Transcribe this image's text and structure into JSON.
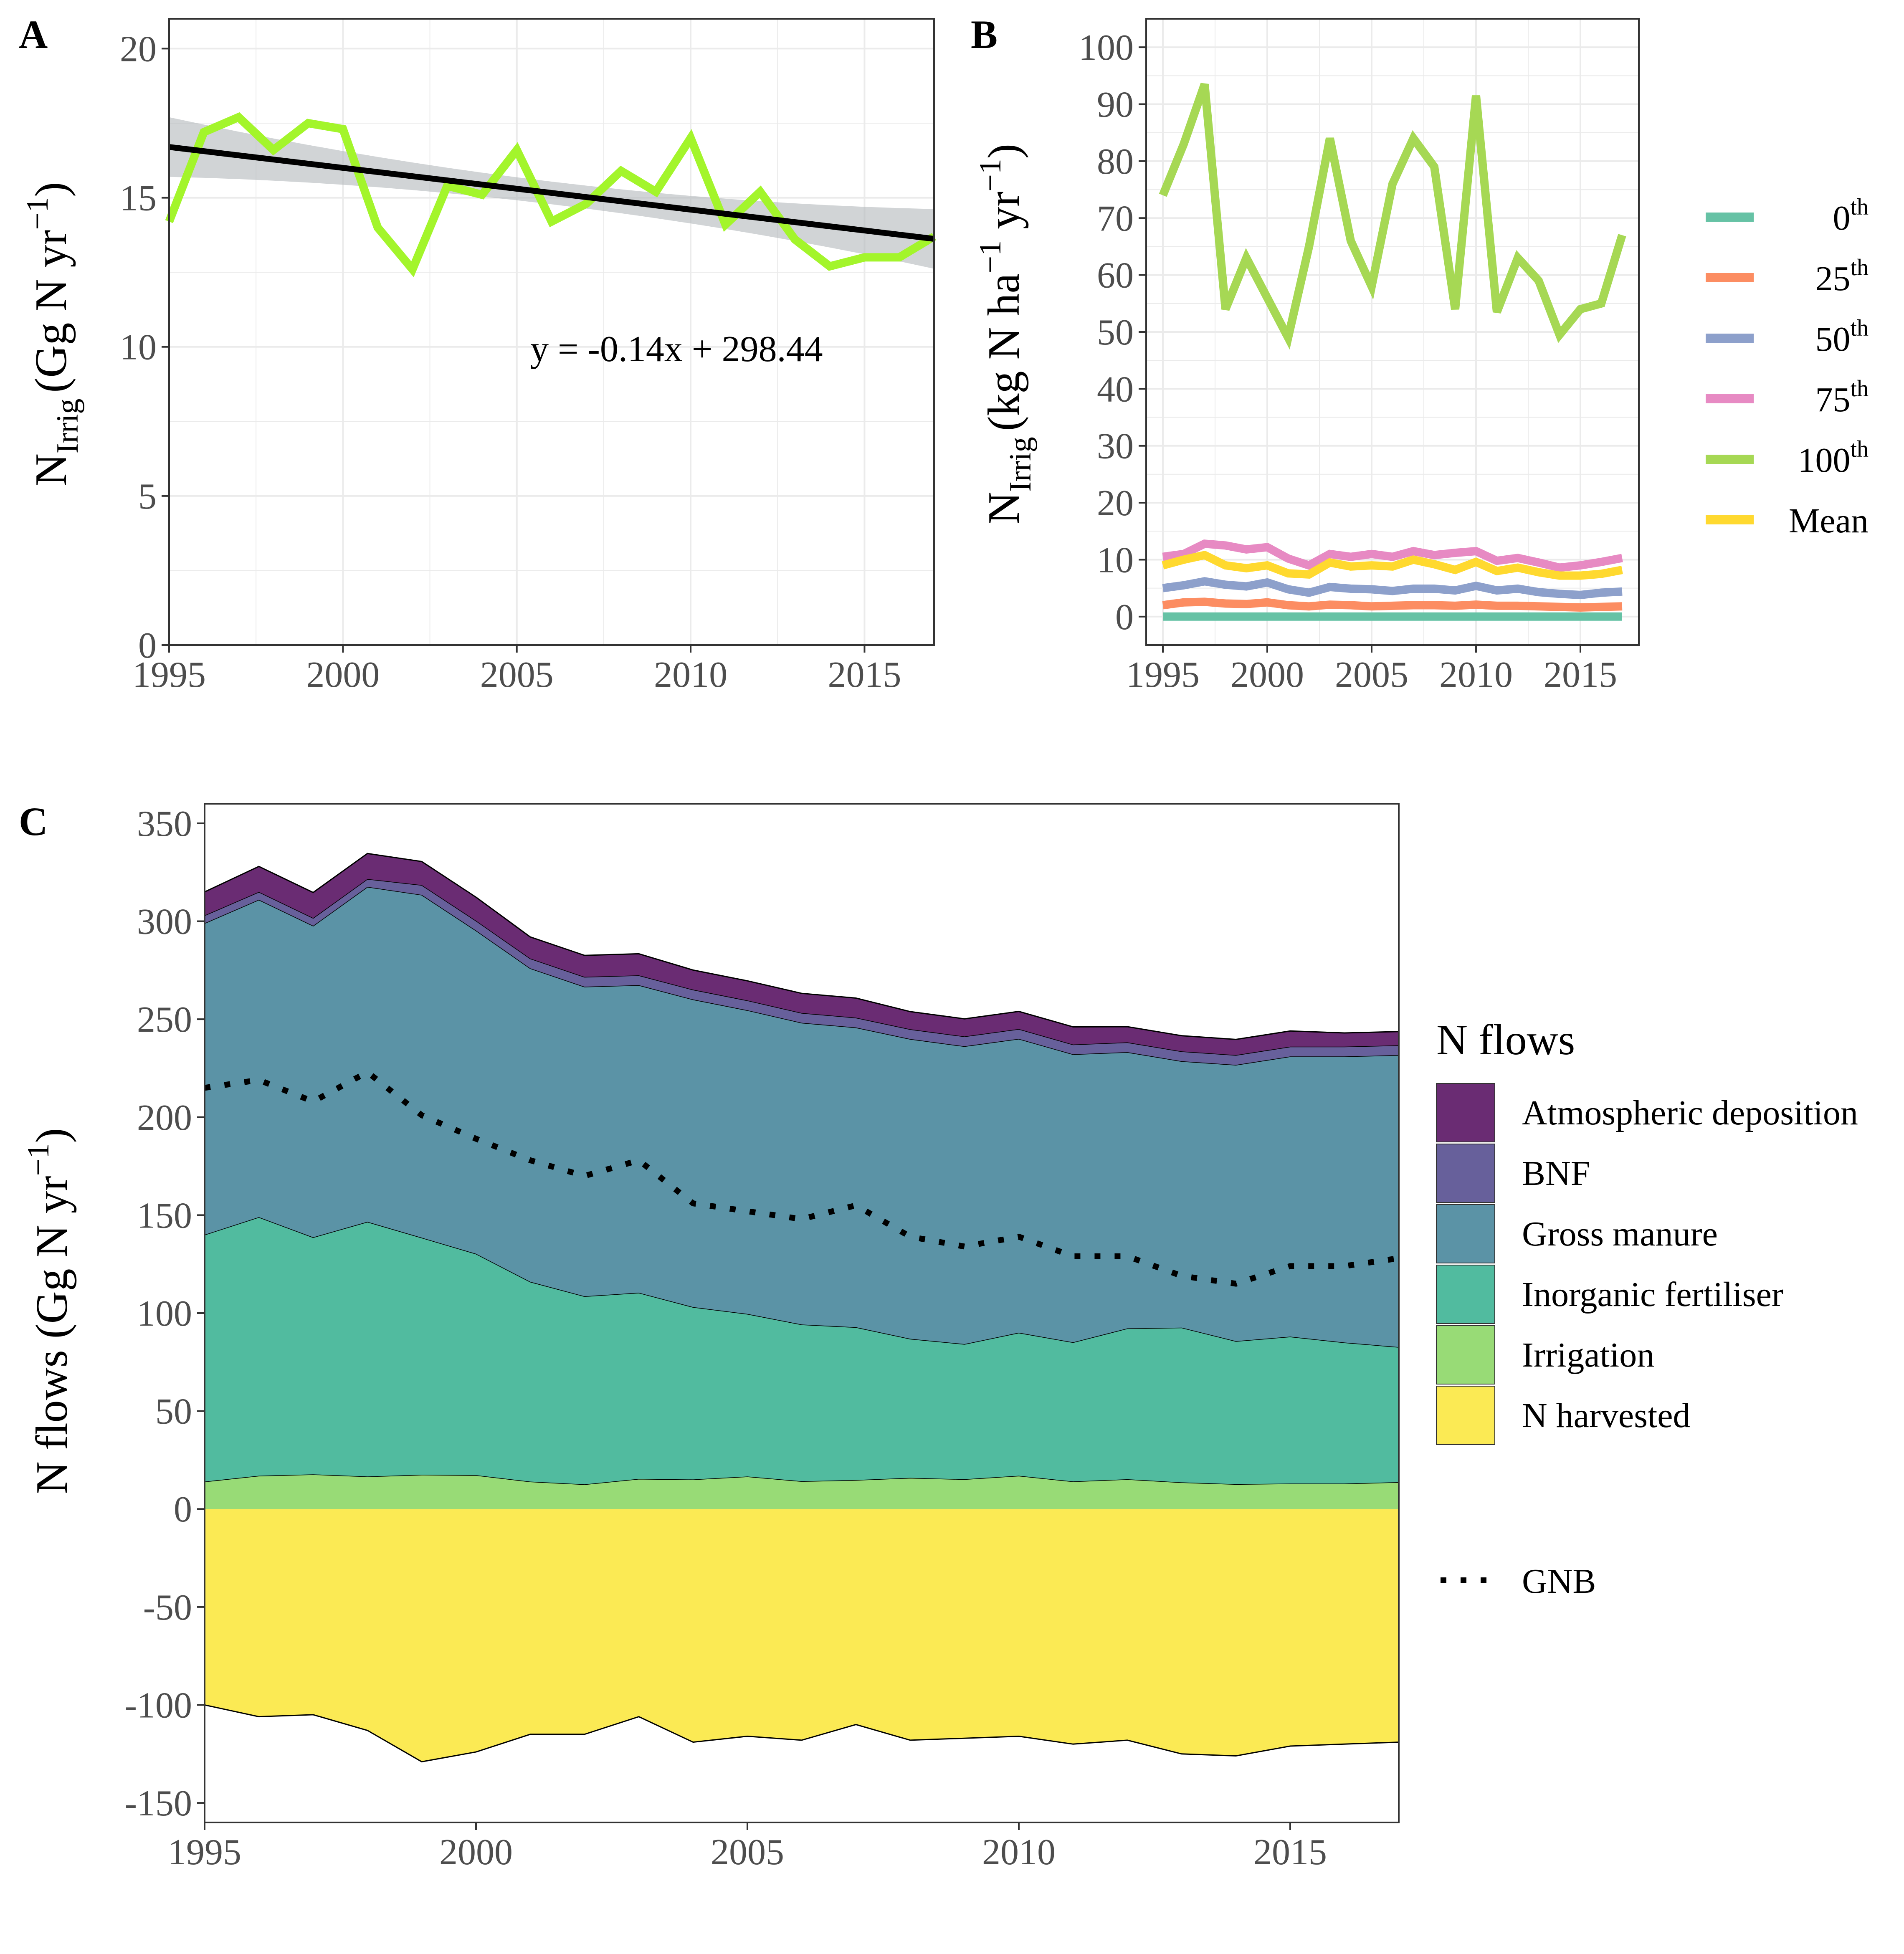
{
  "chart_data": [
    {
      "panel": "A",
      "type": "line",
      "x": [
        1995,
        1996,
        1997,
        1998,
        1999,
        2000,
        2001,
        2002,
        2003,
        2004,
        2005,
        2006,
        2007,
        2008,
        2009,
        2010,
        2011,
        2012,
        2013,
        2014,
        2015,
        2016,
        2017
      ],
      "series": [
        {
          "values": [
            14.2,
            17.2,
            17.7,
            16.6,
            17.5,
            17.3,
            14.0,
            12.6,
            15.4,
            15.1,
            16.6,
            14.2,
            14.8,
            15.9,
            15.2,
            17.0,
            14.1,
            15.2,
            13.6,
            12.7,
            13.0,
            13.0,
            13.7
          ],
          "color": "#a3f52b"
        }
      ],
      "trend": {
        "values": [
          16.7,
          16.56,
          16.42,
          16.28,
          16.14,
          16.0,
          15.86,
          15.72,
          15.58,
          15.44,
          15.3,
          15.16,
          15.02,
          14.88,
          14.74,
          14.6,
          14.46,
          14.32,
          14.18,
          14.04,
          13.9,
          13.76,
          13.62
        ],
        "color": "#000000",
        "ci_color": "#b3b8bb"
      },
      "annotation": "y = -0.14x + 298.44",
      "xticks": [
        "1995",
        "2000",
        "2005",
        "2010",
        "2015"
      ],
      "yticks": [
        "0",
        "5",
        "10",
        "15",
        "20"
      ],
      "xlim": [
        1995,
        2017
      ],
      "ylim": [
        0,
        21
      ],
      "ylabel_main": "N",
      "ylabel_sub": "Irrig",
      "ylabel_unit": "(Gg N yr",
      "ylabel_sup": "−1",
      "ylabel_close": ")",
      "grid": true
    },
    {
      "panel": "B",
      "type": "line",
      "x": [
        1995,
        1996,
        1997,
        1998,
        1999,
        2000,
        2001,
        2002,
        2003,
        2004,
        2005,
        2006,
        2007,
        2008,
        2009,
        2010,
        2011,
        2012,
        2013,
        2014,
        2015,
        2016,
        2017
      ],
      "series": [
        {
          "name_base": "0",
          "name_sup": "th",
          "color": "#66c2a5",
          "values": [
            0,
            0,
            0,
            0,
            0,
            0,
            0,
            0,
            0,
            0,
            0,
            0,
            0,
            0,
            0,
            0,
            0,
            0,
            0,
            0,
            0,
            0,
            0
          ]
        },
        {
          "name_base": "25",
          "name_sup": "th",
          "color": "#fc8d62",
          "values": [
            2.0,
            2.5,
            2.6,
            2.3,
            2.2,
            2.5,
            2.0,
            1.8,
            2.1,
            2.0,
            1.8,
            1.9,
            2.0,
            2.0,
            1.9,
            2.1,
            1.9,
            1.9,
            1.8,
            1.7,
            1.6,
            1.7,
            1.8
          ]
        },
        {
          "name_base": "50",
          "name_sup": "th",
          "color": "#8da0cb",
          "values": [
            5.0,
            5.5,
            6.2,
            5.6,
            5.3,
            6.0,
            4.8,
            4.2,
            5.2,
            4.9,
            4.8,
            4.5,
            4.9,
            4.9,
            4.6,
            5.4,
            4.6,
            4.9,
            4.3,
            4.0,
            3.8,
            4.2,
            4.4
          ]
        },
        {
          "name_base": "75",
          "name_sup": "th",
          "color": "#e78ac3",
          "values": [
            10.5,
            11.0,
            12.8,
            12.5,
            11.8,
            12.2,
            10.2,
            9.0,
            11.0,
            10.5,
            11.0,
            10.5,
            11.5,
            10.8,
            11.2,
            11.5,
            9.8,
            10.3,
            9.5,
            8.6,
            9.0,
            9.6,
            10.3
          ]
        },
        {
          "name_base": "100",
          "name_sup": "th",
          "color": "#a6d854",
          "values": [
            74,
            83,
            93.5,
            54,
            63,
            56,
            49,
            65,
            84,
            66,
            58,
            76,
            84,
            79,
            54,
            91.5,
            53.5,
            63,
            59,
            49.5,
            54,
            55,
            67
          ]
        },
        {
          "name_base": "Mean",
          "name_sup": "",
          "color": "#ffd92f",
          "values": [
            9.0,
            10.0,
            10.8,
            9.0,
            8.5,
            9.0,
            7.6,
            7.4,
            9.5,
            8.8,
            9.0,
            8.8,
            10.0,
            9.2,
            8.2,
            9.6,
            8.0,
            8.6,
            7.8,
            7.2,
            7.2,
            7.5,
            8.2
          ]
        }
      ],
      "xticks": [
        "1995",
        "2000",
        "2005",
        "2010",
        "2015"
      ],
      "yticks": [
        "0",
        "10",
        "20",
        "30",
        "40",
        "50",
        "60",
        "70",
        "80",
        "90",
        "100"
      ],
      "xlim": [
        1994.2,
        2017.8
      ],
      "ylim": [
        -5,
        105
      ],
      "ylabel_main": "N",
      "ylabel_sub": "Irrig",
      "ylabel_unit": "(kg N ha",
      "ylabel_sup1": "−1",
      "ylabel_mid": " yr",
      "ylabel_sup2": "−1",
      "ylabel_close": ")",
      "legend_position": "right",
      "grid": true
    },
    {
      "panel": "C",
      "type": "area",
      "x": [
        1995,
        1996,
        1997,
        1998,
        1999,
        2000,
        2001,
        2002,
        2003,
        2004,
        2005,
        2006,
        2007,
        2008,
        2009,
        2010,
        2011,
        2012,
        2013,
        2014,
        2015,
        2016,
        2017
      ],
      "series": [
        {
          "name": "Atmospheric deposition",
          "color": "#6a2c73",
          "values": [
            12,
            13,
            13,
            13,
            12,
            12,
            11,
            11,
            11,
            10,
            10,
            10,
            10,
            9,
            9,
            9,
            9,
            8,
            8,
            8,
            8,
            7,
            7
          ]
        },
        {
          "name": "BNF",
          "color": "#67609b",
          "values": [
            4,
            4,
            4,
            4,
            5,
            5,
            5,
            5,
            5,
            5,
            5,
            5,
            5,
            5,
            5,
            5,
            5,
            5,
            5,
            5,
            5,
            5,
            5
          ]
        },
        {
          "name": "Gross manure",
          "color": "#5b93a6",
          "values": [
            159,
            162,
            159,
            171,
            175,
            165,
            160,
            158,
            157,
            157,
            155,
            154,
            153,
            153,
            152,
            150,
            147,
            141,
            136,
            141,
            143,
            146,
            149
          ]
        },
        {
          "name": "Inorganic fertiliser",
          "color": "#51bb9f",
          "values": [
            126,
            132,
            121,
            130,
            121,
            113,
            102,
            96,
            95,
            88,
            83,
            80,
            78,
            71,
            69,
            73,
            71,
            77,
            79,
            73,
            75,
            72,
            69
          ]
        },
        {
          "name": "Irrigation",
          "color": "#98db76",
          "values": [
            14,
            17,
            17.7,
            16.6,
            17.5,
            17.3,
            14,
            12.6,
            15.4,
            15.1,
            16.6,
            14.2,
            14.8,
            15.9,
            15.2,
            17,
            14.1,
            15.2,
            13.6,
            12.7,
            13,
            13,
            13.7
          ]
        },
        {
          "name": "N harvested",
          "color": "#fbea54",
          "values": [
            -100,
            -106,
            -105,
            -113,
            -129,
            -124,
            -115,
            -115,
            -106,
            -119,
            -116,
            -118,
            -110,
            -118,
            -117,
            -116,
            -120,
            -118,
            -125,
            -126,
            -121,
            -120,
            -119
          ]
        }
      ],
      "gnb": {
        "name": "GNB",
        "values": [
          215,
          219,
          208,
          223,
          201,
          189,
          178,
          170,
          178,
          156,
          152,
          148,
          155,
          139,
          134,
          139,
          129,
          129,
          119,
          115,
          124,
          124,
          128
        ]
      },
      "legend_title": "N flows",
      "xticks": [
        "1995",
        "2000",
        "2005",
        "2010",
        "2015"
      ],
      "yticks": [
        "350",
        "300",
        "250",
        "200",
        "150",
        "100",
        "50",
        "0",
        "-50",
        "-100",
        "-150"
      ],
      "xlim": [
        1995,
        2017
      ],
      "ylim": [
        -160,
        360
      ],
      "ylabel_unit": "N flows (Gg N yr",
      "ylabel_sup": "−1",
      "ylabel_close": ")",
      "legend_position": "right",
      "grid": false
    }
  ],
  "panel_labels": [
    "A",
    "B",
    "C"
  ]
}
